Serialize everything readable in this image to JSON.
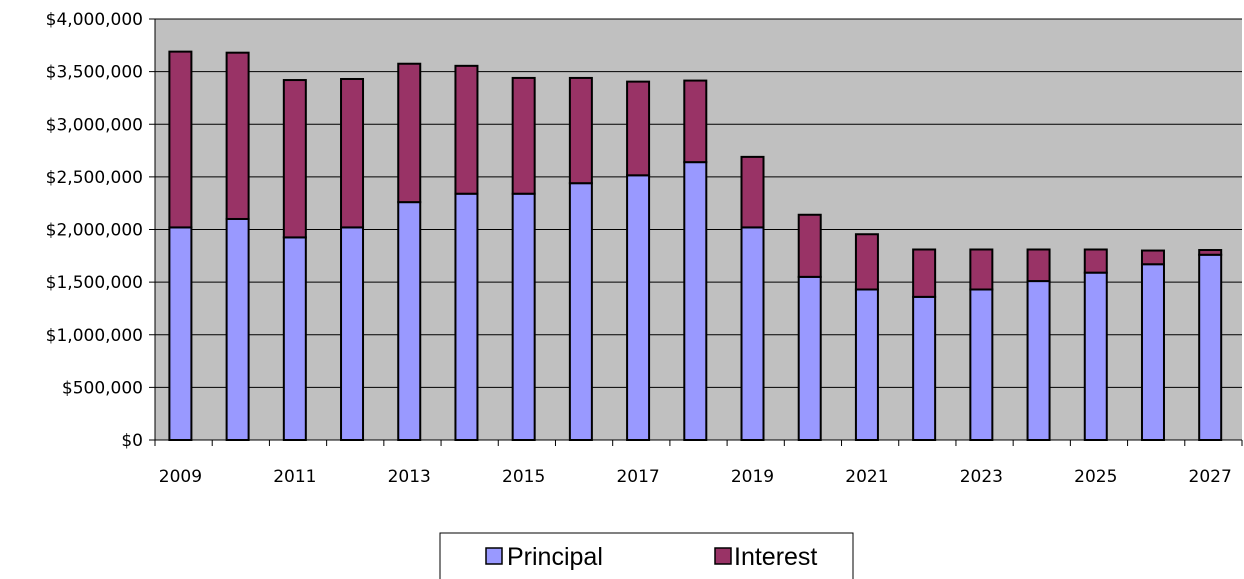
{
  "chart_data": {
    "type": "bar",
    "stacked": true,
    "title": "",
    "xlabel": "",
    "ylabel": "",
    "categories": [
      "2009",
      "2010",
      "2011",
      "2012",
      "2013",
      "2014",
      "2015",
      "2016",
      "2017",
      "2018",
      "2019",
      "2020",
      "2021",
      "2022",
      "2023",
      "2024",
      "2025",
      "2026",
      "2027"
    ],
    "x_tick_labels": [
      "2009",
      "2011",
      "2013",
      "2015",
      "2017",
      "2019",
      "2021",
      "2023",
      "2025",
      "2027"
    ],
    "y_tick_labels": [
      "$0",
      "$500,000",
      "$1,000,000",
      "$1,500,000",
      "$2,000,000",
      "$2,500,000",
      "$3,000,000",
      "$3,500,000",
      "$4,000,000"
    ],
    "ylim": [
      0,
      4000000
    ],
    "y_tick_step": 500000,
    "grid": true,
    "plot_background": "#c0c0c0",
    "legend_position": "bottom",
    "series": [
      {
        "name": "Principal",
        "color": "#9999ff",
        "values": [
          2020000,
          2100000,
          1925000,
          2020000,
          2260000,
          2340000,
          2340000,
          2440000,
          2515000,
          2640000,
          2020000,
          1550000,
          1430000,
          1360000,
          1430000,
          1510000,
          1590000,
          1670000,
          1760000
        ]
      },
      {
        "name": "Interest",
        "color": "#993366",
        "values": [
          1670000,
          1580000,
          1495000,
          1410000,
          1315000,
          1215000,
          1100000,
          1000000,
          890000,
          775000,
          670000,
          590000,
          525000,
          450000,
          380000,
          300000,
          220000,
          130000,
          45000
        ]
      }
    ]
  }
}
